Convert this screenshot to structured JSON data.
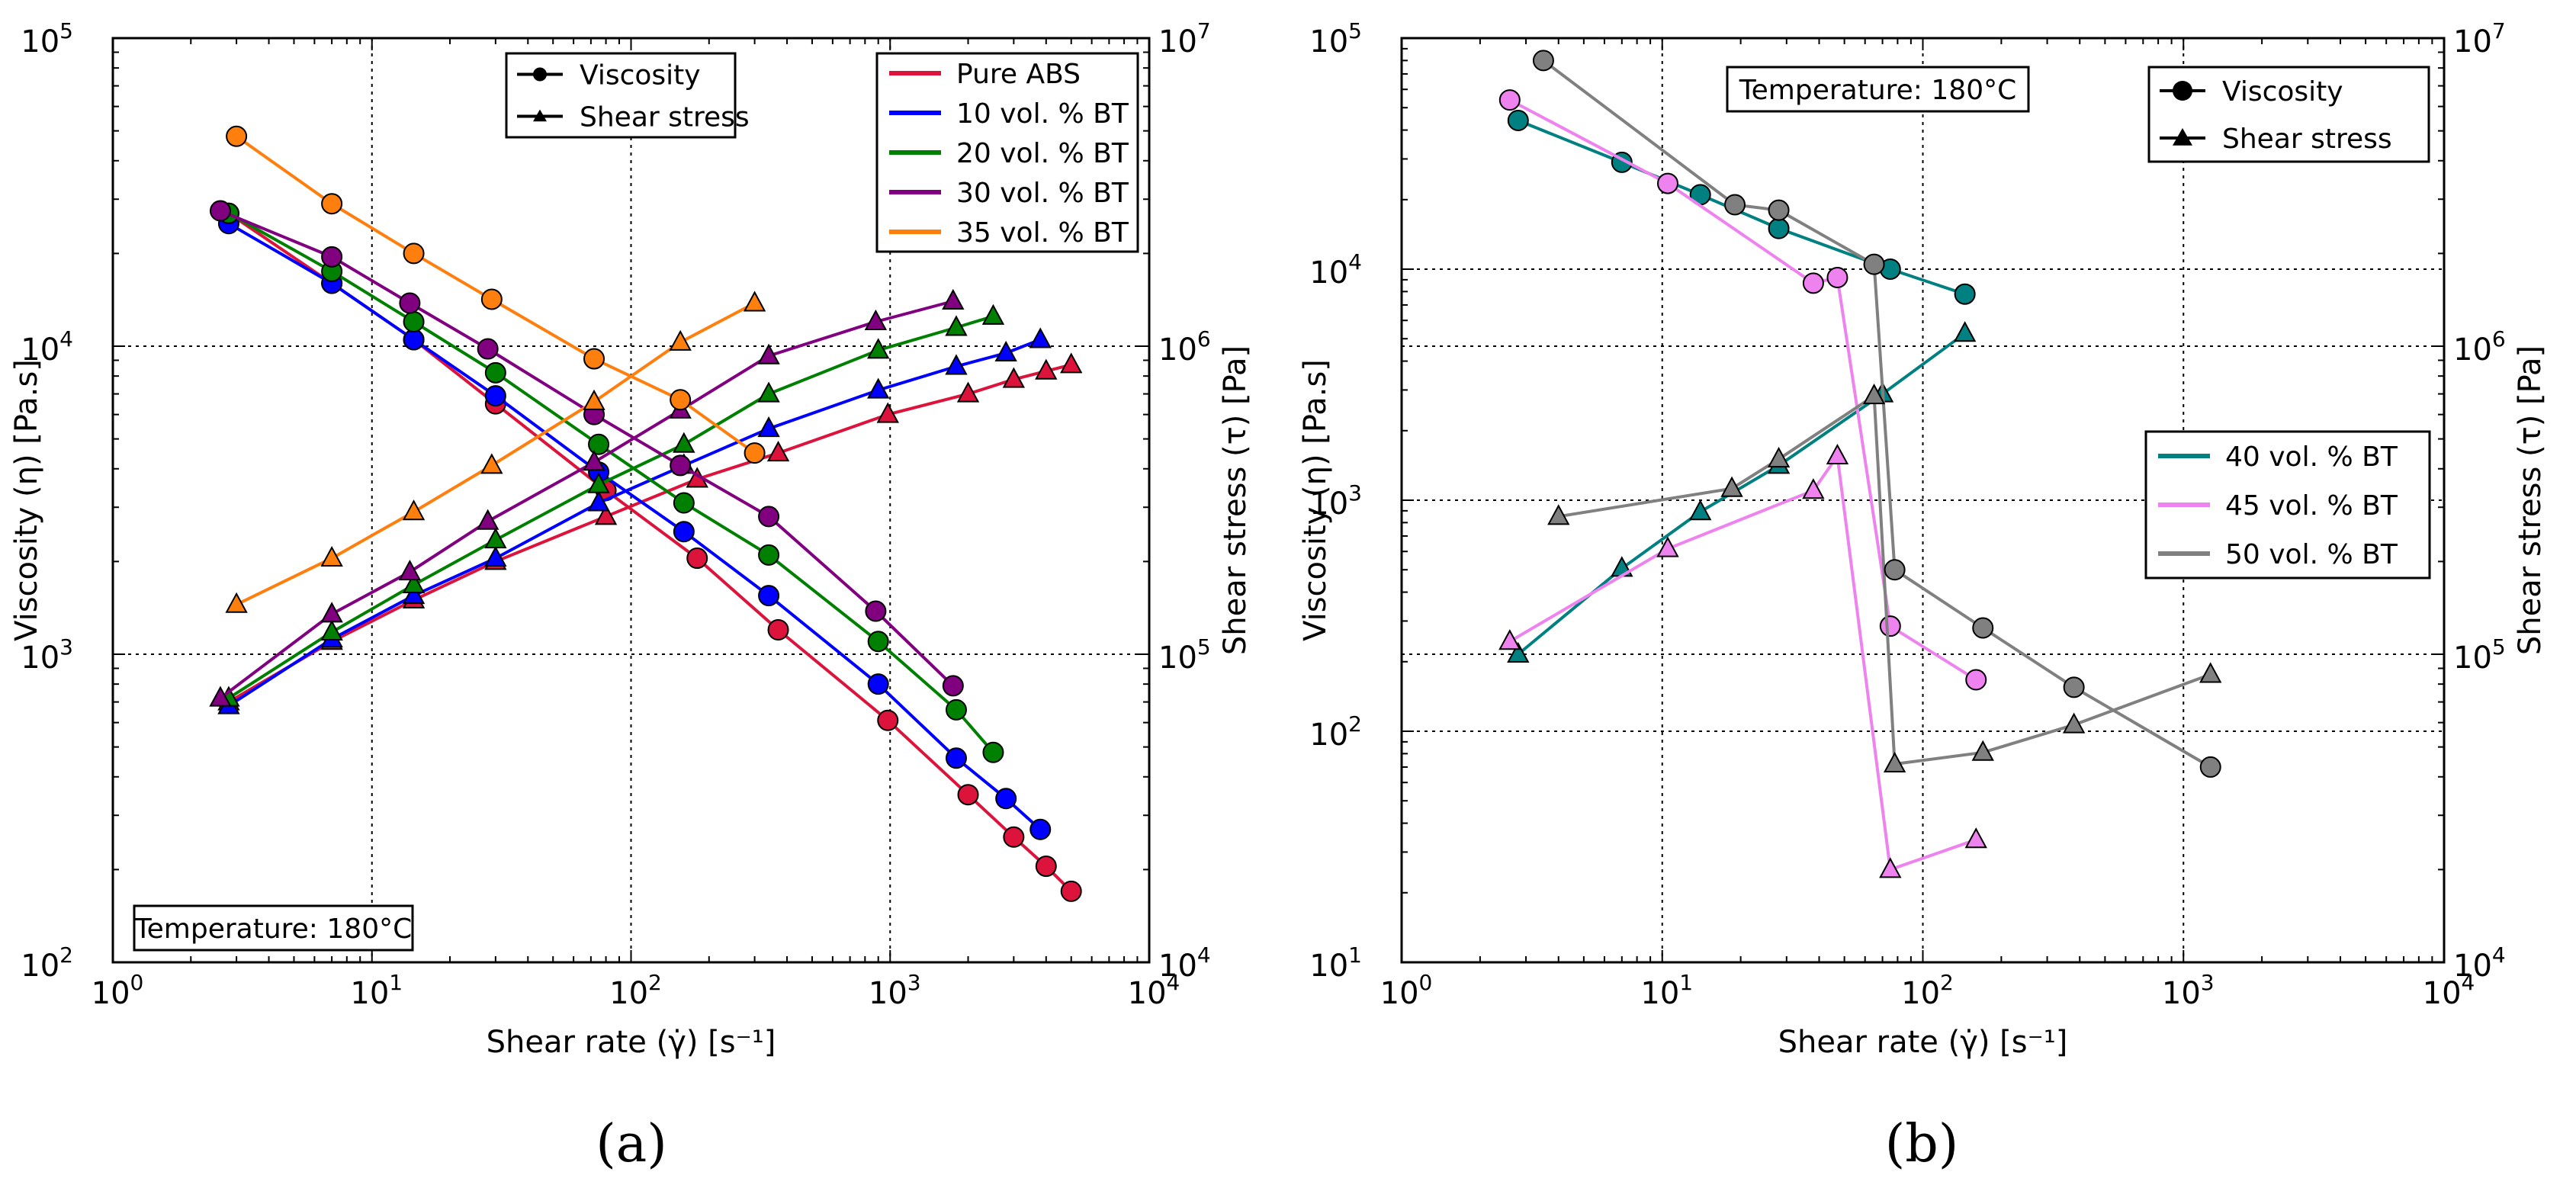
{
  "colors": {
    "pure_abs": "#dc143c",
    "bt10": "#0000ff",
    "bt20": "#008000",
    "bt30": "#800080",
    "bt35": "#ff7f0e",
    "bt40": "#008080",
    "bt45": "#ee82ee",
    "bt50": "#808080"
  },
  "chart_data": [
    {
      "id": "a",
      "type": "line",
      "caption": "(a)",
      "xlabel": "Shear rate (γ̇) [s⁻¹]",
      "ylabel": "Viscosity (η) [Pa.s]",
      "y2label": "Shear stress (τ) [Pa]",
      "xscale": "log",
      "xlim": [
        1,
        10000
      ],
      "yscale": "log",
      "ylim": [
        100,
        100000
      ],
      "y2scale": "log",
      "y2lim": [
        10000,
        10000000
      ],
      "grid": true,
      "x_ticks": [
        {
          "base": "10",
          "exp": "0"
        },
        {
          "base": "10",
          "exp": "1"
        },
        {
          "base": "10",
          "exp": "2"
        },
        {
          "base": "10",
          "exp": "3"
        },
        {
          "base": "10",
          "exp": "4"
        }
      ],
      "y_ticks": [
        {
          "base": "10",
          "exp": "2"
        },
        {
          "base": "10",
          "exp": "3"
        },
        {
          "base": "10",
          "exp": "4"
        },
        {
          "base": "10",
          "exp": "5"
        }
      ],
      "y2_ticks": [
        {
          "base": "10",
          "exp": "4"
        },
        {
          "base": "10",
          "exp": "5"
        },
        {
          "base": "10",
          "exp": "6"
        },
        {
          "base": "10",
          "exp": "7"
        }
      ],
      "annotation": "Temperature: 180°C",
      "annotation_position": "bottom-left",
      "marker_legend": {
        "position": "top-center",
        "entries": [
          "Viscosity",
          "Shear stress"
        ]
      },
      "series_legend": {
        "position": "top-right"
      },
      "series": [
        {
          "name": "Pure ABS",
          "color_key": "pure_abs",
          "viscosity": {
            "x": [
              2.8,
              7.0,
              14.5,
              30,
              80,
              180,
              370,
              980,
              2000,
              3000,
              4000,
              5000
            ],
            "y": [
              27000,
              16000,
              10500,
              6500,
              3400,
              2050,
              1200,
              610,
              350,
              255,
              205,
              170
            ]
          },
          "shear_stress": {
            "x": [
              2.8,
              7.0,
              14.5,
              30,
              80,
              180,
              370,
              980,
              2000,
              3000,
              4000,
              5000
            ],
            "y": [
              70000,
              110000,
              150000,
              200000,
              280000,
              370000,
              450000,
              600000,
              700000,
              780000,
              830000,
              870000
            ]
          }
        },
        {
          "name": "10 vol. % BT",
          "color_key": "bt10",
          "viscosity": {
            "x": [
              2.8,
              7.0,
              14.5,
              30,
              75,
              160,
              340,
              900,
              1800,
              2800,
              3800
            ],
            "y": [
              25000,
              16000,
              10500,
              6900,
              3900,
              2500,
              1550,
              800,
              460,
              340,
              270
            ]
          },
          "shear_stress": {
            "x": [
              2.8,
              7.0,
              14.5,
              30,
              75,
              160,
              340,
              900,
              1800,
              2800,
              3800
            ],
            "y": [
              68000,
              112000,
              155000,
              205000,
              310000,
              410000,
              540000,
              720000,
              860000,
              950000,
              1050000
            ]
          }
        },
        {
          "name": "20 vol. % BT",
          "color_key": "bt20",
          "viscosity": {
            "x": [
              2.8,
              7.0,
              14.5,
              30,
              75,
              160,
              340,
              900,
              1800,
              2500
            ],
            "y": [
              27000,
              17500,
              12000,
              8200,
              4800,
              3100,
              2100,
              1100,
              660,
              480
            ]
          },
          "shear_stress": {
            "x": [
              2.8,
              7.0,
              14.5,
              30,
              75,
              160,
              340,
              900,
              1800,
              2500
            ],
            "y": [
              72000,
              118000,
              168000,
              235000,
              355000,
              480000,
              700000,
              970000,
              1150000,
              1250000
            ]
          }
        },
        {
          "name": "30 vol. % BT",
          "color_key": "bt30",
          "viscosity": {
            "x": [
              2.6,
              7.0,
              14,
              28,
              72,
              155,
              340,
              880,
              1750
            ],
            "y": [
              27500,
              19500,
              13800,
              9800,
              6000,
              4100,
              2800,
              1380,
              790
            ]
          },
          "shear_stress": {
            "x": [
              2.6,
              7.0,
              14,
              28,
              72,
              155,
              340,
              880,
              1750
            ],
            "y": [
              72000,
              135000,
              185000,
              270000,
              420000,
              620000,
              930000,
              1200000,
              1400000
            ]
          }
        },
        {
          "name": "35 vol. % BT",
          "color_key": "bt35",
          "viscosity": {
            "x": [
              3.0,
              7.0,
              14.5,
              29,
              72,
              155,
              300
            ],
            "y": [
              48000,
              29000,
              20000,
              14200,
              9100,
              6700,
              4500
            ]
          },
          "shear_stress": {
            "x": [
              3.0,
              7.0,
              14.5,
              29,
              72,
              155,
              300
            ],
            "y": [
              145000,
              205000,
              290000,
              410000,
              660000,
              1030000,
              1380000
            ]
          }
        }
      ]
    },
    {
      "id": "b",
      "type": "line",
      "caption": "(b)",
      "xlabel": "Shear rate (γ̇) [s⁻¹]",
      "ylabel": "Viscosity (η) [Pa.s]",
      "y2label": "Shear stress (τ) [Pa]",
      "xscale": "log",
      "xlim": [
        1,
        10000
      ],
      "yscale": "log",
      "ylim": [
        10,
        100000
      ],
      "y2scale": "log",
      "y2lim": [
        10000,
        10000000
      ],
      "grid": true,
      "x_ticks": [
        {
          "base": "10",
          "exp": "0"
        },
        {
          "base": "10",
          "exp": "1"
        },
        {
          "base": "10",
          "exp": "2"
        },
        {
          "base": "10",
          "exp": "3"
        },
        {
          "base": "10",
          "exp": "4"
        }
      ],
      "y_ticks": [
        {
          "base": "10",
          "exp": "1"
        },
        {
          "base": "10",
          "exp": "2"
        },
        {
          "base": "10",
          "exp": "3"
        },
        {
          "base": "10",
          "exp": "4"
        },
        {
          "base": "10",
          "exp": "5"
        }
      ],
      "y2_ticks": [
        {
          "base": "10",
          "exp": "4"
        },
        {
          "base": "10",
          "exp": "5"
        },
        {
          "base": "10",
          "exp": "6"
        },
        {
          "base": "10",
          "exp": "7"
        }
      ],
      "annotation": "Temperature: 180°C",
      "annotation_position": "top-left",
      "marker_legend": {
        "position": "top-right",
        "entries": [
          "Viscosity",
          "Shear stress"
        ]
      },
      "series_legend": {
        "position": "center-right"
      },
      "series": [
        {
          "name": "40 vol. % BT",
          "color_key": "bt40",
          "viscosity": {
            "x": [
              2.8,
              7.0,
              14,
              28,
              75,
              145
            ],
            "y": [
              44000,
              29000,
              21000,
              15000,
              10000,
              7800
            ]
          },
          "shear_stress": {
            "x": [
              2.8,
              7.0,
              14,
              28,
              70,
              145
            ],
            "y": [
              100000,
              190000,
              290000,
              410000,
              700000,
              1100000
            ]
          }
        },
        {
          "name": "45 vol. % BT",
          "color_key": "bt45",
          "viscosity": {
            "x": [
              2.6,
              10.5,
              38,
              47,
              75,
              160
            ],
            "y": [
              54000,
              23500,
              8700,
              9200,
              285,
              167
            ]
          },
          "shear_stress": {
            "x": [
              2.6,
              10.5,
              38,
              47,
              75,
              160
            ],
            "y": [
              110000,
              220000,
              340000,
              440000,
              20000,
              25000
            ]
          }
        },
        {
          "name": "50 vol. % BT",
          "color_key": "bt50",
          "viscosity": {
            "x": [
              3.5,
              19,
              28,
              65,
              78,
              170,
              380,
              1270
            ],
            "y": [
              80000,
              19000,
              18000,
              10500,
              500,
              280,
              155,
              70
            ]
          },
          "shear_stress": {
            "x": [
              4.0,
              18.5,
              28,
              65,
              78,
              170,
              380,
              1270
            ],
            "y": [
              280000,
              345000,
              430000,
              690000,
              44000,
              48000,
              59000,
              86000
            ]
          }
        }
      ]
    }
  ]
}
